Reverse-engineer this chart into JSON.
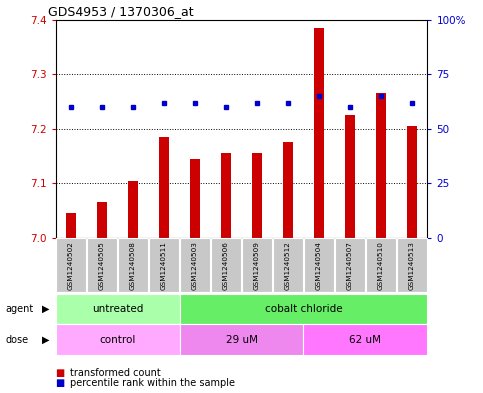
{
  "title": "GDS4953 / 1370306_at",
  "samples": [
    "GSM1240502",
    "GSM1240505",
    "GSM1240508",
    "GSM1240511",
    "GSM1240503",
    "GSM1240506",
    "GSM1240509",
    "GSM1240512",
    "GSM1240504",
    "GSM1240507",
    "GSM1240510",
    "GSM1240513"
  ],
  "bar_values": [
    7.045,
    7.065,
    7.105,
    7.185,
    7.145,
    7.155,
    7.155,
    7.175,
    7.385,
    7.225,
    7.265,
    7.205
  ],
  "dot_values": [
    60,
    60,
    60,
    62,
    62,
    60,
    62,
    62,
    65,
    60,
    65,
    62
  ],
  "ylim_left": [
    7.0,
    7.4
  ],
  "ylim_right": [
    0,
    100
  ],
  "yticks_left": [
    7.0,
    7.1,
    7.2,
    7.3,
    7.4
  ],
  "yticks_right": [
    0,
    25,
    50,
    75,
    100
  ],
  "ytick_labels_right": [
    "0",
    "25",
    "50",
    "75",
    "100%"
  ],
  "bar_color": "#cc0000",
  "dot_color": "#0000cc",
  "bar_bottom": 7.0,
  "agent_groups": [
    {
      "label": "untreated",
      "start": 0,
      "end": 4,
      "color": "#aaffaa"
    },
    {
      "label": "cobalt chloride",
      "start": 4,
      "end": 12,
      "color": "#66ee66"
    }
  ],
  "dose_groups": [
    {
      "label": "control",
      "start": 0,
      "end": 4,
      "color": "#ffaaff"
    },
    {
      "label": "29 uM",
      "start": 4,
      "end": 8,
      "color": "#ee88ee"
    },
    {
      "label": "62 uM",
      "start": 8,
      "end": 12,
      "color": "#ff77ff"
    }
  ],
  "background_color": "#ffffff",
  "plot_bg_color": "#ffffff",
  "tick_label_color_left": "#cc0000",
  "tick_label_color_right": "#0000cc",
  "sample_box_color": "#c8c8c8",
  "bar_width": 0.35
}
